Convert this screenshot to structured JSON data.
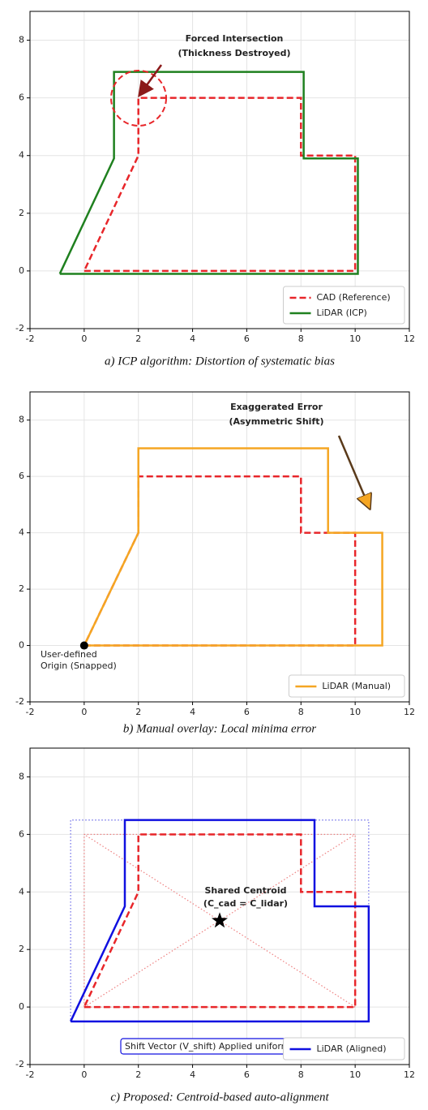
{
  "chart_data": [
    {
      "type": "line",
      "caption": "a) ICP algorithm: Distortion of systematic bias",
      "xlim": [
        -2,
        12
      ],
      "ylim": [
        -2,
        9
      ],
      "xticks": [
        -2,
        0,
        2,
        4,
        6,
        8,
        10,
        12
      ],
      "yticks": [
        -2,
        0,
        2,
        4,
        6,
        8
      ],
      "grid": true,
      "legend": "lower right",
      "series": [
        {
          "name": "CAD (Reference)",
          "color": "#e8262a",
          "style": "dashed",
          "x": [
            0,
            10,
            10,
            8,
            8,
            2,
            2,
            0
          ],
          "y": [
            0,
            0,
            4,
            4,
            6,
            6,
            4,
            0
          ]
        },
        {
          "name": "LiDAR (ICP)",
          "color": "#1f801f",
          "style": "solid",
          "x": [
            -0.9,
            10.1,
            10.1,
            8.1,
            8.1,
            1.1,
            1.1,
            -0.9
          ],
          "y": [
            -0.1,
            -0.1,
            3.9,
            3.9,
            6.9,
            6.9,
            3.9,
            -0.1
          ]
        }
      ],
      "annotations": [
        {
          "text": [
            "Forced Intersection",
            "(Thickness Destroyed)"
          ],
          "color": "#e8262a"
        }
      ]
    },
    {
      "type": "line",
      "caption": "b) Manual overlay: Local minima error",
      "xlim": [
        -2,
        12
      ],
      "ylim": [
        -2,
        9
      ],
      "xticks": [
        -2,
        0,
        2,
        4,
        6,
        8,
        10,
        12
      ],
      "yticks": [
        -2,
        0,
        2,
        4,
        6,
        8
      ],
      "grid": true,
      "legend": "lower right",
      "series": [
        {
          "color": "#e8262a",
          "style": "dashed",
          "x": [
            0,
            10,
            10,
            8,
            8,
            2,
            2,
            0
          ],
          "y": [
            0,
            0,
            4,
            4,
            6,
            6,
            4,
            0
          ]
        },
        {
          "name": "LiDAR (Manual)",
          "color": "#f5a623",
          "style": "solid",
          "x": [
            0,
            11,
            11,
            9,
            9,
            2,
            2,
            0
          ],
          "y": [
            0,
            0,
            4,
            4,
            7,
            7,
            4,
            0
          ]
        },
        {
          "color": "#000000",
          "style": "none",
          "marker": "circle",
          "x": [
            0
          ],
          "y": [
            0
          ]
        }
      ],
      "annotations": [
        {
          "text": [
            "Exaggerated Error",
            "(Asymmetric Shift)"
          ],
          "color": "#f5a623"
        },
        {
          "text": [
            "User-defined",
            "Origin (Snapped)"
          ],
          "color": "#222222"
        }
      ]
    },
    {
      "type": "line",
      "caption": "c) Proposed: Centroid-based auto-alignment",
      "xlim": [
        -2,
        12
      ],
      "ylim": [
        -2,
        9
      ],
      "xticks": [
        -2,
        0,
        2,
        4,
        6,
        8,
        10,
        12
      ],
      "yticks": [
        -2,
        0,
        2,
        4,
        6,
        8
      ],
      "grid": true,
      "legend": "lower right",
      "series": [
        {
          "color": "#6a6ae8",
          "style": "dotted",
          "x": [
            -0.5,
            10.5,
            10.5,
            -0.5,
            -0.5
          ],
          "y": [
            -0.5,
            -0.5,
            6.5,
            6.5,
            -0.5
          ]
        },
        {
          "color": "#ee8080",
          "style": "dotted",
          "x": [
            0,
            10,
            10,
            0,
            0
          ],
          "y": [
            0,
            0,
            6,
            6,
            0
          ]
        },
        {
          "color": "#ee8080",
          "style": "dotted",
          "x": [
            0,
            10
          ],
          "y": [
            0,
            6
          ]
        },
        {
          "color": "#ee8080",
          "style": "dotted",
          "x": [
            10,
            0
          ],
          "y": [
            0,
            6
          ]
        },
        {
          "color": "#e8262a",
          "style": "dashed",
          "x": [
            0,
            10,
            10,
            8,
            8,
            2,
            2,
            0
          ],
          "y": [
            0,
            0,
            4,
            4,
            6,
            6,
            4,
            0
          ]
        },
        {
          "name": "LiDAR (Aligned)",
          "color": "#1010e0",
          "style": "solid",
          "x": [
            -0.5,
            10.5,
            10.5,
            8.5,
            8.5,
            1.5,
            1.5,
            -0.5
          ],
          "y": [
            -0.5,
            -0.5,
            3.5,
            3.5,
            6.5,
            6.5,
            3.5,
            -0.5
          ]
        },
        {
          "color": "#000000",
          "style": "none",
          "marker": "star",
          "x": [
            5
          ],
          "y": [
            3
          ]
        }
      ],
      "annotations": [
        {
          "text": [
            "Shared Centroid",
            "(C_cad = C_lidar)"
          ],
          "color": "#111111"
        },
        {
          "text": [
            "Shift Vector (V_shift) Applied uniformly"
          ],
          "color": "#222222"
        }
      ]
    }
  ]
}
